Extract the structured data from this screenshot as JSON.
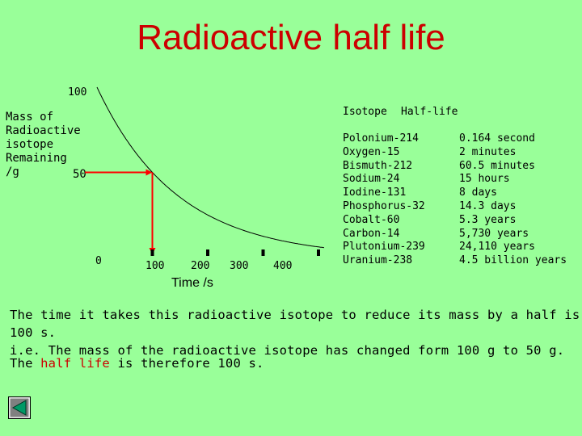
{
  "title": "Radioactive half life",
  "y_axis": {
    "label_lines": [
      "Mass of",
      "Radioactive",
      "isotope",
      "Remaining",
      "/g"
    ],
    "tick_top": "100",
    "tick_mid": "50",
    "tick_zero": "0"
  },
  "x_axis": {
    "label": "Time /s",
    "ticks": [
      "100",
      "200",
      "300",
      "400"
    ]
  },
  "chart_data": {
    "type": "line",
    "title": "",
    "xlabel": "Time /s",
    "ylabel": "Mass of Radioactive isotope Remaining /g",
    "x": [
      0,
      50,
      100,
      150,
      200,
      250,
      300,
      350
    ],
    "y": [
      100,
      70.7,
      50,
      35.4,
      25,
      17.7,
      12.5,
      8.8
    ],
    "xlim": [
      0,
      400
    ],
    "ylim": [
      0,
      100
    ],
    "annotation": {
      "x": 100,
      "y": 50,
      "note": "half life marker"
    },
    "series_color": "#000000",
    "marker_color": "#ff0000"
  },
  "table": {
    "header_isotope": "Isotope",
    "header_halflife": "Half-life",
    "isotopes": [
      "Polonium-214",
      "Oxygen-15",
      "Bismuth-212",
      "Sodium-24",
      "Iodine-131",
      "Phosphorus-32",
      "Cobalt-60",
      "Carbon-14",
      "Plutonium-239",
      "Uranium-238"
    ],
    "half_lives": [
      "0.164 second",
      "2 minutes",
      "60.5 minutes",
      "15 hours",
      "8 days",
      "14.3 days",
      "5.3 years",
      "5,730 years",
      "24,110 years",
      "4.5 billion years"
    ]
  },
  "explanation": {
    "line1": "The time it takes this radioactive isotope to reduce its mass by a half is 100 s.",
    "line2": "i.e. The mass of the radioactive isotope has changed form 100 g to 50 g."
  },
  "conclusion": {
    "pre": "The ",
    "highlight": "half life",
    "post": " is therefore 100 s."
  },
  "nav": {
    "back_icon": "back-arrow-icon"
  },
  "colors": {
    "background": "#99ff99",
    "title": "#cc0000",
    "marker": "#ff0000"
  }
}
